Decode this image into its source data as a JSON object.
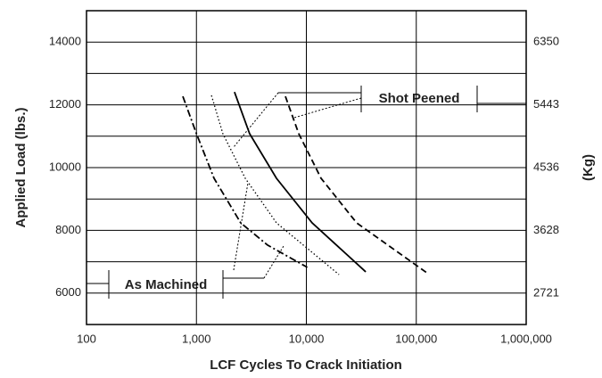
{
  "chart_data": {
    "type": "line",
    "x_label": "LCF Cycles To Crack Initiation",
    "y_label": "Applied Load (lbs.)",
    "y2_label": "(Kg)",
    "xlog": true,
    "xlim": [
      100,
      1000000
    ],
    "xticks": [
      100,
      {
        "value": 1000,
        "label": "1,000"
      },
      {
        "value": 10000,
        "label": "10,000"
      },
      {
        "value": 100000,
        "label": "100,000"
      },
      {
        "value": 1000000,
        "label": "1,000,000"
      }
    ],
    "ylim": [
      5000,
      15000
    ],
    "yticks": [
      6000,
      8000,
      10000,
      12000,
      14000
    ],
    "yminor": [
      7000,
      9000,
      11000,
      13000
    ],
    "y2lim": [
      2268,
      6804
    ],
    "y2ticks": [
      2721,
      3628,
      4536,
      5443,
      6350
    ],
    "grid": true,
    "annotations": [
      "Shot Peened",
      "As Machined"
    ],
    "series": [
      {
        "style": "dashdot",
        "color": "#000000",
        "x": [
          752,
          1000,
          1446,
          2530,
          4440,
          10200
        ],
        "values": [
          12270,
          11080,
          9660,
          8240,
          7530,
          6820
        ]
      },
      {
        "style": "dotted",
        "color": "#000000",
        "x": [
          1370,
          1740,
          2780,
          5350,
          19800
        ],
        "values": [
          12300,
          11080,
          9660,
          8240,
          6590
        ]
      },
      {
        "style": "solid",
        "color": "#000000",
        "x": [
          2220,
          3050,
          5350,
          11300,
          34700
        ],
        "values": [
          12410,
          11080,
          9660,
          8240,
          6680
        ]
      },
      {
        "style": "dashed",
        "color": "#000000",
        "x": [
          6450,
          8530,
          13600,
          28700,
          128000
        ],
        "values": [
          12270,
          11080,
          9660,
          8240,
          6620
        ]
      }
    ]
  }
}
